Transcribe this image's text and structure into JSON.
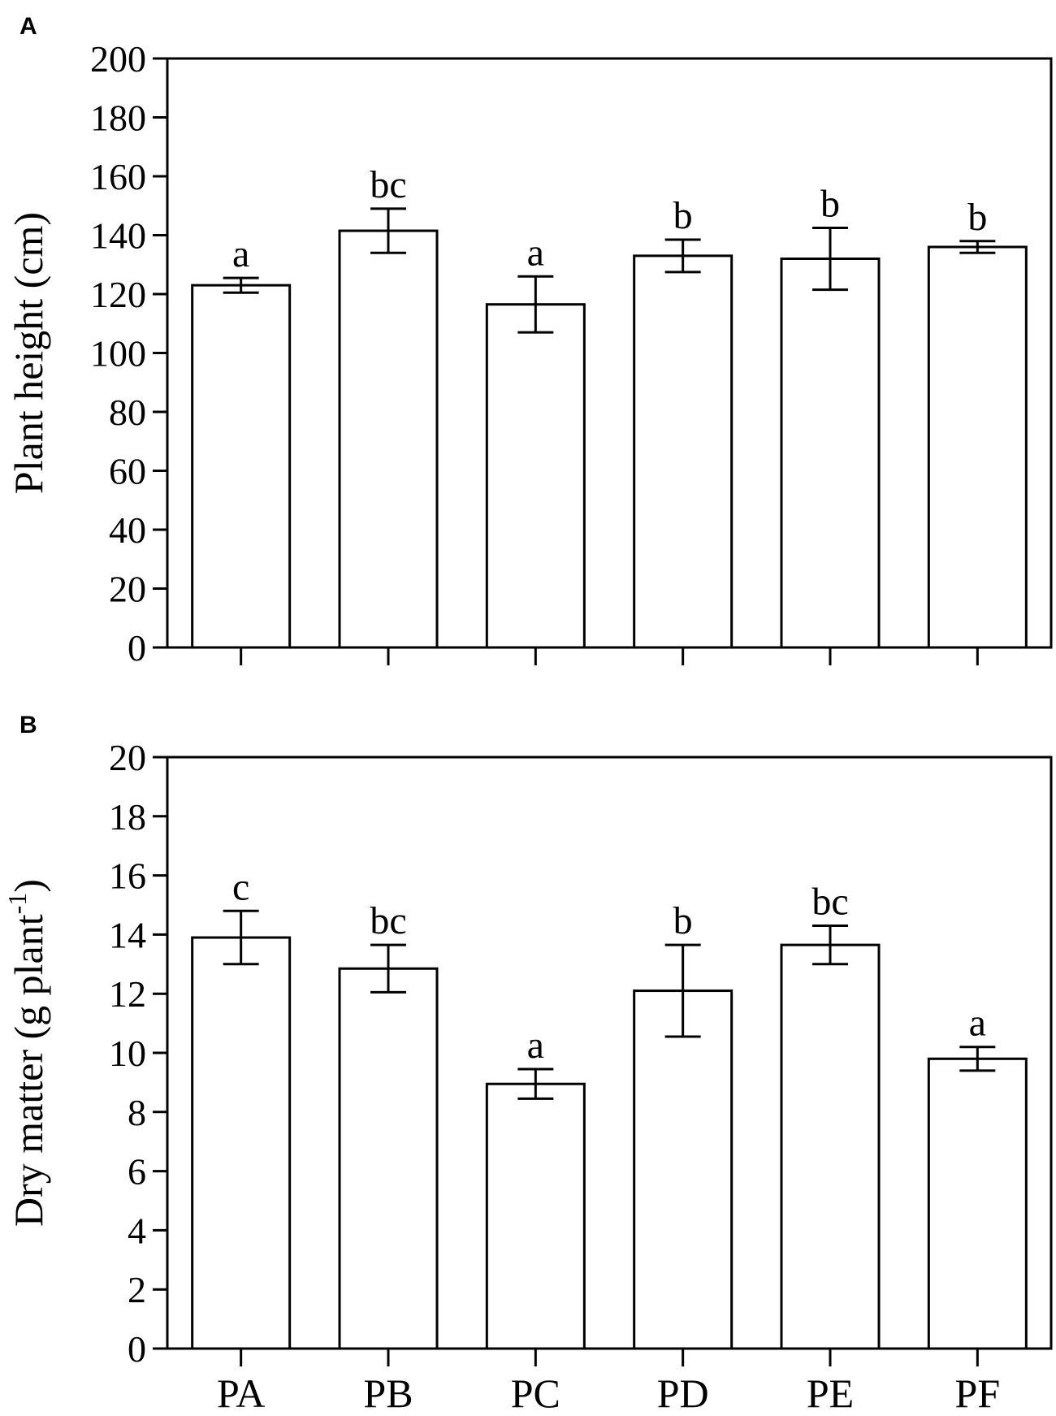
{
  "chart_data": [
    {
      "type": "bar",
      "panel": "A",
      "categories": [
        "PA",
        "PB",
        "PC",
        "PD",
        "PE",
        "PF"
      ],
      "values": [
        123,
        141.5,
        116.5,
        133,
        132,
        136
      ],
      "errors": [
        2.5,
        7.5,
        9.5,
        5.5,
        10.5,
        2
      ],
      "significance": [
        "a",
        "bc",
        "a",
        "b",
        "b",
        "b"
      ],
      "ylabel": "Plant height (cm)",
      "ylim": [
        0,
        200
      ],
      "yticks": [
        0,
        20,
        40,
        60,
        80,
        100,
        120,
        140,
        160,
        180,
        200
      ],
      "show_category_labels": false
    },
    {
      "type": "bar",
      "panel": "B",
      "categories": [
        "PA",
        "PB",
        "PC",
        "PD",
        "PE",
        "PF"
      ],
      "values": [
        13.9,
        12.85,
        8.95,
        12.1,
        13.65,
        9.8
      ],
      "errors": [
        0.9,
        0.8,
        0.5,
        1.55,
        0.65,
        0.4
      ],
      "significance": [
        "c",
        "bc",
        "a",
        "b",
        "bc",
        "a"
      ],
      "ylabel": "Dry matter (g plant",
      "ylabel_sup": "-1",
      "ylabel_end": ")",
      "ylim": [
        0,
        20
      ],
      "yticks": [
        0,
        2,
        4,
        6,
        8,
        10,
        12,
        14,
        16,
        18,
        20
      ],
      "show_category_labels": true
    }
  ]
}
